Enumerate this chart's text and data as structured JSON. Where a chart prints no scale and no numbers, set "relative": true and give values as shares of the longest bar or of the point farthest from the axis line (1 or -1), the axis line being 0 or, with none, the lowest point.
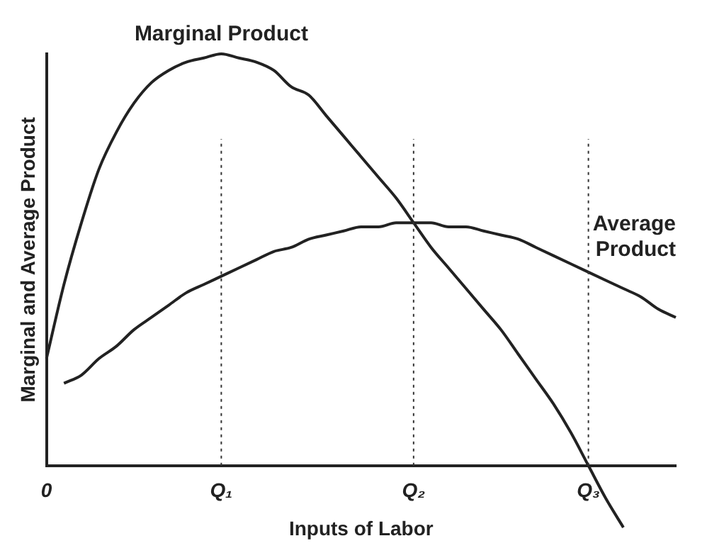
{
  "chart_data": {
    "type": "line",
    "relative": true,
    "xlabel": "Inputs of Labor",
    "ylabel": "Marginal and Average Product",
    "categories": [
      "0",
      null,
      null,
      null,
      null,
      null,
      null,
      null,
      null,
      null,
      "Q₁",
      null,
      null,
      null,
      null,
      null,
      null,
      null,
      null,
      null,
      null,
      "Q₂",
      null,
      null,
      null,
      null,
      null,
      null,
      null,
      null,
      null,
      "Q₃",
      null,
      null,
      null,
      null,
      null
    ],
    "series": [
      {
        "name": "Marginal Product",
        "color": "#222222",
        "values": [
          0.26,
          0.44,
          0.59,
          0.72,
          0.81,
          0.88,
          0.93,
          0.96,
          0.98,
          0.99,
          1.0,
          0.99,
          0.98,
          0.96,
          0.92,
          0.9,
          0.85,
          0.8,
          0.75,
          0.7,
          0.65,
          0.59,
          0.53,
          0.48,
          0.43,
          0.38,
          0.33,
          0.27,
          0.21,
          0.15,
          0.08,
          0,
          -0.08,
          -0.15,
          null,
          null,
          null
        ]
      },
      {
        "name": "Average Product",
        "color": "#222222",
        "values": [
          null,
          0.2,
          0.22,
          0.26,
          0.29,
          0.33,
          0.36,
          0.39,
          0.42,
          0.44,
          0.46,
          0.48,
          0.5,
          0.52,
          0.53,
          0.55,
          0.56,
          0.57,
          0.58,
          0.58,
          0.59,
          0.59,
          0.59,
          0.58,
          0.58,
          0.57,
          0.56,
          0.55,
          0.53,
          0.51,
          0.49,
          0.47,
          0.45,
          0.43,
          0.41,
          0.38,
          0.36
        ]
      }
    ],
    "ref_lines": [
      {
        "axis": "x",
        "value": "Q₁",
        "line_style": "dotted"
      },
      {
        "axis": "x",
        "value": "Q₂",
        "line_style": "dotted"
      },
      {
        "axis": "x",
        "value": "Q₃",
        "line_style": "dotted"
      }
    ],
    "grid": false,
    "legend": false,
    "marker": "none",
    "line_style": "solid"
  }
}
